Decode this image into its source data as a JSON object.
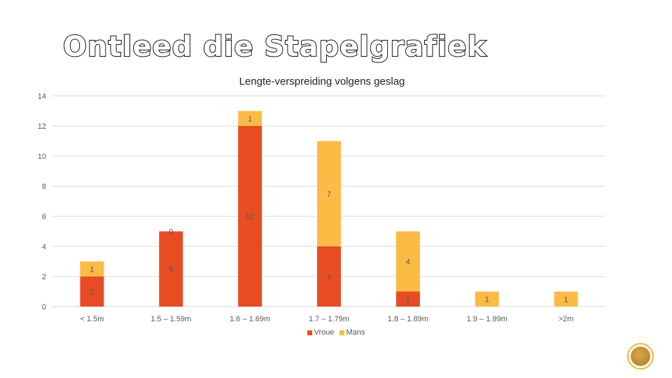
{
  "slide": {
    "title": "Ontleed die Stapelgrafiek"
  },
  "chart_data": {
    "type": "bar",
    "stacked": true,
    "title": "Lengte-verspreiding volgens geslag",
    "xlabel": "",
    "ylabel": "",
    "ylim": [
      0,
      14
    ],
    "yticks": [
      0,
      2,
      4,
      6,
      8,
      10,
      12,
      14
    ],
    "grid": true,
    "legend": "bottom",
    "categories": [
      "< 1.5m",
      "1.5 – 1.59m",
      "1.6 – 1.69m",
      "1.7 – 1.79m",
      "1.8 – 1.89m",
      "1.9 – 1.99m",
      ">2m"
    ],
    "series": [
      {
        "name": "Vroue",
        "color": "#e84c23",
        "values": [
          2,
          5,
          12,
          4,
          1,
          0,
          0
        ],
        "labels": [
          "2",
          "5",
          "12",
          "4",
          "1",
          "0",
          "0"
        ]
      },
      {
        "name": "Mans",
        "color": "#fbbb45",
        "values": [
          1,
          0,
          1,
          7,
          4,
          1,
          1
        ],
        "labels": [
          "1",
          "0",
          "1",
          "7",
          "4",
          "1",
          "1"
        ]
      }
    ]
  },
  "colors": {
    "badge_ring": "#f0b43f",
    "grid": "#d9d9d9",
    "text": "#595959"
  }
}
